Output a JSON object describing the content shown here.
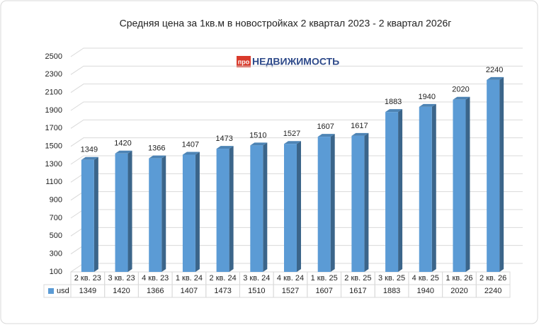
{
  "chart_data": {
    "type": "bar3d",
    "title": "Средняя цена за 1кв.м в новостройках 2 квартал 2023 - 2 квартал 2026г",
    "logo": {
      "badge": "про",
      "text": "НЕДВИЖИМОСТЬ"
    },
    "categories": [
      "2 кв. 23",
      "3 кв. 23",
      "4 кв. 23",
      "1 кв. 24",
      "2 кв. 24",
      "3 кв. 24",
      "4 кв. 24",
      "1 кв. 25",
      "2 кв. 25",
      "3 кв. 25",
      "4 кв. 25",
      "1 кв. 26",
      "2 кв. 26"
    ],
    "series": [
      {
        "name": "usd",
        "color": "#5b9bd5",
        "values": [
          1349,
          1420,
          1366,
          1407,
          1473,
          1510,
          1527,
          1607,
          1617,
          1883,
          1940,
          2020,
          2240
        ]
      }
    ],
    "ylim": [
      100,
      2500
    ],
    "yticks": [
      100,
      300,
      500,
      700,
      900,
      1100,
      1300,
      1500,
      1700,
      1900,
      2100,
      2300,
      2500
    ],
    "grid": true,
    "data_table": true
  }
}
